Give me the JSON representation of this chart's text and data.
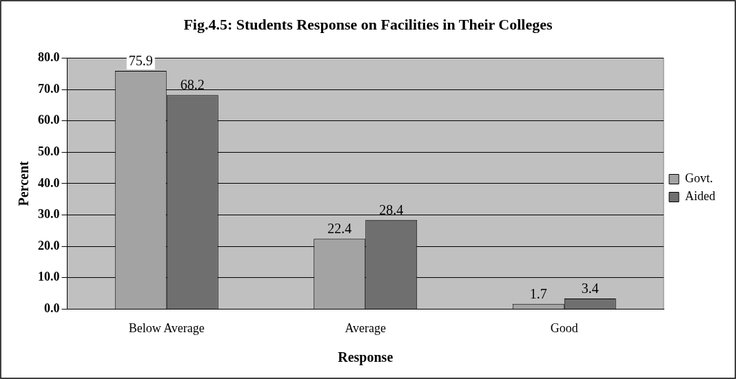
{
  "chart_data": {
    "type": "bar",
    "title": "Fig.4.5: Students Response on Facilities in Their Colleges",
    "xlabel": "Response",
    "ylabel": "Percent",
    "categories": [
      "Below Average",
      "Average",
      "Good"
    ],
    "series": [
      {
        "name": "Govt.",
        "color": "#a3a3a3",
        "values": [
          75.9,
          22.4,
          1.7
        ]
      },
      {
        "name": "Aided",
        "color": "#6f6f6f",
        "values": [
          68.2,
          28.4,
          3.4
        ]
      }
    ],
    "ylim": [
      0,
      80
    ],
    "yticks": [
      {
        "value": 0,
        "label": "0.0"
      },
      {
        "value": 10,
        "label": "10.0"
      },
      {
        "value": 20,
        "label": "20.0"
      },
      {
        "value": 30,
        "label": "30.0"
      },
      {
        "value": 40,
        "label": "40.0"
      },
      {
        "value": 50,
        "label": "50.0"
      },
      {
        "value": 60,
        "label": "60.0"
      },
      {
        "value": 70,
        "label": "70.0"
      },
      {
        "value": 80,
        "label": "80.0"
      }
    ],
    "grid": "y",
    "legend": "right",
    "data_labels": true
  }
}
